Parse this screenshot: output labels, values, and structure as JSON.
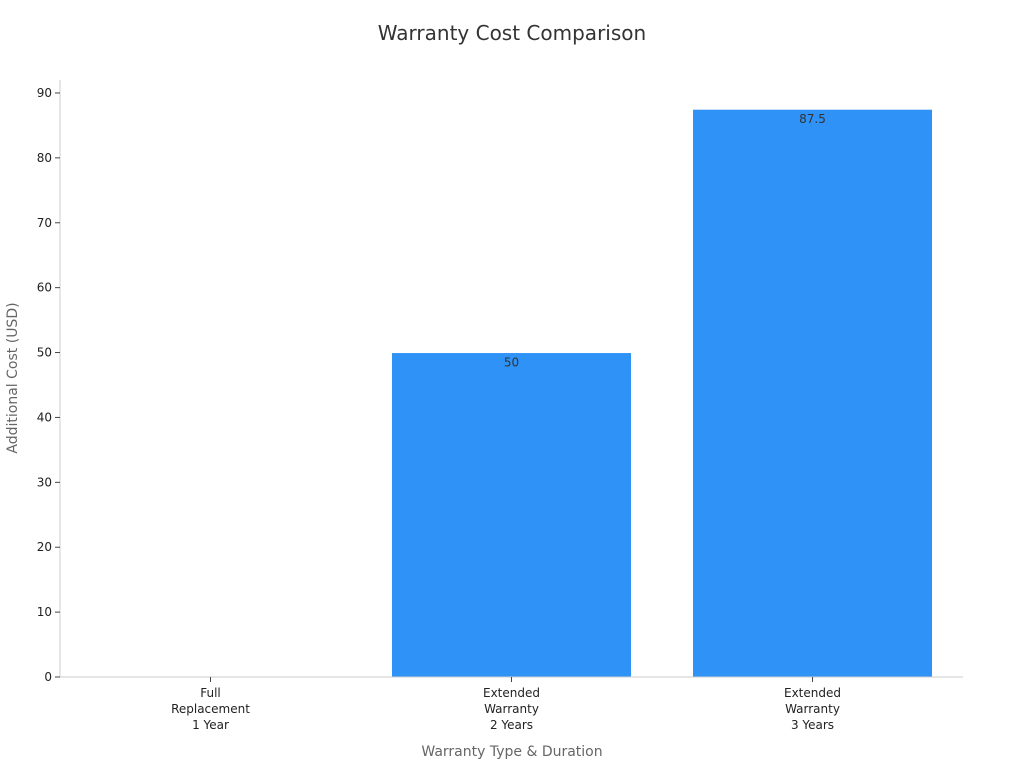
{
  "chart_data": {
    "type": "bar",
    "title": "Warranty Cost Comparison",
    "xlabel": "Warranty Type & Duration",
    "ylabel": "Additional Cost (USD)",
    "categories": [
      [
        "Full",
        "Replacement",
        "1 Year"
      ],
      [
        "Extended",
        "Warranty",
        "2 Years"
      ],
      [
        "Extended",
        "Warranty",
        "3 Years"
      ]
    ],
    "values": [
      0,
      50,
      87.5
    ],
    "data_labels": [
      "",
      "50",
      "87.5"
    ],
    "ylim": [
      0,
      92
    ],
    "yticks": [
      0,
      10,
      20,
      30,
      40,
      50,
      60,
      70,
      80,
      90
    ],
    "grid": false,
    "colors": {
      "bar": "#2e92f7",
      "bar_edge": "#ffffff",
      "axis": "#cccccc",
      "tick": "#444444"
    }
  }
}
